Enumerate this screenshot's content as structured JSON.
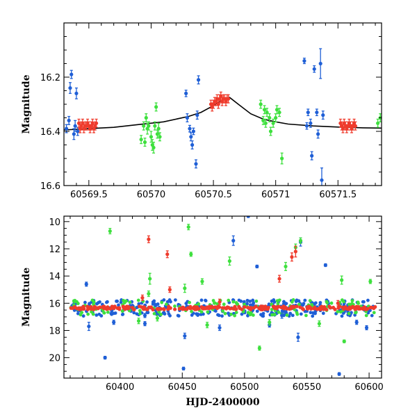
{
  "colors": {
    "blue": "#1f5fd6",
    "green": "#3ee03e",
    "red": "#ef3b2c",
    "axis": "#000000",
    "model": "#000000"
  },
  "chart_data": [
    {
      "type": "scatter",
      "xlabel": "",
      "ylabel": "Magnitude",
      "xlim": [
        60569.3,
        60571.85
      ],
      "ylim": [
        16.6,
        16.0
      ],
      "y_inverted": true,
      "x_ticks": [
        60569.5,
        60570,
        60570.5,
        60571,
        60571.5
      ],
      "x_tick_labels": [
        "60569.5",
        "60570",
        "60570.5",
        "60571",
        "60571.5"
      ],
      "y_ticks": [
        16.2,
        16.4,
        16.6
      ],
      "y_tick_labels": [
        "16.2",
        "16.4",
        "16.6"
      ],
      "model_curve": {
        "x": [
          60569.3,
          60569.5,
          60569.7,
          60569.9,
          60570.1,
          60570.3,
          60570.4,
          60570.5,
          60570.55,
          60570.6,
          60570.63,
          60570.7,
          60570.8,
          60570.9,
          60571.0,
          60571.1,
          60571.3,
          60571.5,
          60571.7,
          60571.85
        ],
        "y": [
          16.395,
          16.39,
          16.385,
          16.375,
          16.365,
          16.345,
          16.33,
          16.305,
          16.29,
          16.28,
          16.275,
          16.3,
          16.335,
          16.355,
          16.365,
          16.373,
          16.38,
          16.384,
          16.387,
          16.388
        ]
      },
      "series": [
        {
          "color": "blue",
          "points": [
            [
              60569.32,
              16.39,
              0.015
            ],
            [
              60569.34,
              16.36,
              0.015
            ],
            [
              60569.35,
              16.24,
              0.02
            ],
            [
              60569.36,
              16.19,
              0.015
            ],
            [
              60569.38,
              16.41,
              0.02
            ],
            [
              60569.39,
              16.38,
              0.02
            ],
            [
              60569.4,
              16.26,
              0.02
            ],
            [
              60569.41,
              16.4,
              0.015
            ],
            [
              60570.28,
              16.26,
              0.012
            ],
            [
              60570.29,
              16.35,
              0.015
            ],
            [
              60570.31,
              16.39,
              0.012
            ],
            [
              60570.32,
              16.42,
              0.015
            ],
            [
              60570.33,
              16.45,
              0.015
            ],
            [
              60570.34,
              16.4,
              0.012
            ],
            [
              60570.36,
              16.52,
              0.015
            ],
            [
              60570.37,
              16.34,
              0.015
            ],
            [
              60570.38,
              16.21,
              0.015
            ],
            [
              60571.23,
              16.14,
              0.01
            ],
            [
              60571.25,
              16.38,
              0.012
            ],
            [
              60571.26,
              16.33,
              0.012
            ],
            [
              60571.28,
              16.37,
              0.015
            ],
            [
              60571.29,
              16.49,
              0.015
            ],
            [
              60571.31,
              16.17,
              0.012
            ],
            [
              60571.33,
              16.33,
              0.012
            ],
            [
              60571.34,
              16.41,
              0.015
            ],
            [
              60571.36,
              16.15,
              0.055
            ],
            [
              60571.37,
              16.58,
              0.045
            ],
            [
              60571.38,
              16.34,
              0.015
            ]
          ]
        },
        {
          "color": "green",
          "points": [
            [
              60569.92,
              16.43,
              0.015
            ],
            [
              60569.94,
              16.38,
              0.015
            ],
            [
              60569.95,
              16.44,
              0.015
            ],
            [
              60569.96,
              16.35,
              0.015
            ],
            [
              60569.97,
              16.39,
              0.02
            ],
            [
              60569.98,
              16.38,
              0.015
            ],
            [
              60570.0,
              16.42,
              0.02
            ],
            [
              60570.01,
              16.45,
              0.02
            ],
            [
              60570.02,
              16.46,
              0.02
            ],
            [
              60570.03,
              16.38,
              0.015
            ],
            [
              60570.04,
              16.31,
              0.015
            ],
            [
              60570.05,
              16.41,
              0.015
            ],
            [
              60570.06,
              16.39,
              0.02
            ],
            [
              60570.07,
              16.42,
              0.015
            ],
            [
              60570.88,
              16.3,
              0.015
            ],
            [
              60570.9,
              16.36,
              0.015
            ],
            [
              60570.91,
              16.32,
              0.015
            ],
            [
              60570.92,
              16.37,
              0.015
            ],
            [
              60570.93,
              16.33,
              0.015
            ],
            [
              60570.95,
              16.35,
              0.015
            ],
            [
              60570.96,
              16.4,
              0.015
            ],
            [
              60570.98,
              16.37,
              0.015
            ],
            [
              60571.0,
              16.35,
              0.015
            ],
            [
              60571.01,
              16.32,
              0.015
            ],
            [
              60571.03,
              16.33,
              0.015
            ],
            [
              60571.05,
              16.5,
              0.02
            ],
            [
              60571.82,
              16.37,
              0.015
            ],
            [
              60571.84,
              16.35,
              0.015
            ]
          ]
        },
        {
          "color": "red",
          "points": [
            [
              60569.42,
              16.37,
              0.015
            ],
            [
              60569.43,
              16.39,
              0.015
            ],
            [
              60569.44,
              16.38,
              0.015
            ],
            [
              60569.45,
              16.37,
              0.015
            ],
            [
              60569.46,
              16.39,
              0.015
            ],
            [
              60569.47,
              16.38,
              0.015
            ],
            [
              60569.48,
              16.38,
              0.015
            ],
            [
              60569.49,
              16.37,
              0.015
            ],
            [
              60569.5,
              16.38,
              0.015
            ],
            [
              60569.51,
              16.39,
              0.015
            ],
            [
              60569.52,
              16.38,
              0.015
            ],
            [
              60569.53,
              16.37,
              0.015
            ],
            [
              60569.54,
              16.39,
              0.015
            ],
            [
              60569.55,
              16.38,
              0.015
            ],
            [
              60569.56,
              16.37,
              0.015
            ],
            [
              60570.48,
              16.3,
              0.015
            ],
            [
              60570.49,
              16.31,
              0.015
            ],
            [
              60570.5,
              16.3,
              0.015
            ],
            [
              60570.51,
              16.29,
              0.015
            ],
            [
              60570.52,
              16.29,
              0.015
            ],
            [
              60570.53,
              16.28,
              0.015
            ],
            [
              60570.54,
              16.3,
              0.015
            ],
            [
              60570.55,
              16.28,
              0.015
            ],
            [
              60570.56,
              16.27,
              0.015
            ],
            [
              60570.57,
              16.29,
              0.015
            ],
            [
              60570.58,
              16.28,
              0.015
            ],
            [
              60570.59,
              16.28,
              0.015
            ],
            [
              60570.6,
              16.29,
              0.015
            ],
            [
              60570.61,
              16.28,
              0.015
            ],
            [
              60570.62,
              16.28,
              0.015
            ],
            [
              60571.52,
              16.37,
              0.015
            ],
            [
              60571.53,
              16.38,
              0.015
            ],
            [
              60571.54,
              16.39,
              0.015
            ],
            [
              60571.55,
              16.37,
              0.015
            ],
            [
              60571.56,
              16.38,
              0.015
            ],
            [
              60571.57,
              16.39,
              0.015
            ],
            [
              60571.58,
              16.38,
              0.015
            ],
            [
              60571.59,
              16.37,
              0.015
            ],
            [
              60571.6,
              16.38,
              0.015
            ],
            [
              60571.61,
              16.39,
              0.015
            ],
            [
              60571.62,
              16.38,
              0.015
            ],
            [
              60571.63,
              16.37,
              0.015
            ],
            [
              60571.64,
              16.38,
              0.015
            ]
          ]
        }
      ]
    },
    {
      "type": "scatter",
      "xlabel": "HJD-2400000",
      "ylabel": "Magnitude",
      "xlim": [
        60355,
        60610
      ],
      "ylim": [
        21.5,
        9.6
      ],
      "y_inverted": true,
      "x_ticks": [
        60400,
        60450,
        60500,
        60550,
        60600
      ],
      "x_tick_labels": [
        "60400",
        "60450",
        "60500",
        "60550",
        "60600"
      ],
      "y_ticks": [
        10,
        12,
        14,
        16,
        18,
        20
      ],
      "y_tick_labels": [
        "10",
        "12",
        "14",
        "16",
        "18",
        "20"
      ],
      "band_range": [
        60360,
        60605
      ],
      "baseline_mag": 16.35,
      "series": [
        {
          "color": "blue",
          "outliers": [
            [
              60373,
              14.6,
              0.15
            ],
            [
              60388,
              20.0,
              0.1
            ],
            [
              60420,
              17.5,
              0.15
            ],
            [
              60451,
              20.8,
              0.1
            ],
            [
              60452,
              18.4,
              0.2
            ],
            [
              60491,
              11.4,
              0.35
            ],
            [
              60503,
              9.6,
              0.1
            ],
            [
              60510,
              13.3,
              0.1
            ],
            [
              60545,
              11.5,
              0.3
            ],
            [
              60543,
              18.5,
              0.3
            ],
            [
              60565,
              13.2,
              0.1
            ],
            [
              60576,
              21.2,
              0.1
            ],
            [
              60375,
              17.7,
              0.3
            ],
            [
              60480,
              17.8,
              0.2
            ],
            [
              60530,
              16.9,
              0.2
            ],
            [
              60598,
              17.8,
              0.15
            ],
            [
              60420,
              16.9,
              0.15
            ],
            [
              60395,
              17.4,
              0.15
            ],
            [
              60520,
              17.6,
              0.15
            ],
            [
              60590,
              17.4,
              0.15
            ]
          ]
        },
        {
          "color": "green",
          "outliers": [
            [
              60392,
              10.7,
              0.2
            ],
            [
              60424,
              14.2,
              0.4
            ],
            [
              60423,
              15.3,
              0.2
            ],
            [
              60455,
              10.4,
              0.2
            ],
            [
              60457,
              12.4,
              0.15
            ],
            [
              60452,
              14.9,
              0.3
            ],
            [
              60466,
              14.4,
              0.2
            ],
            [
              60488,
              12.9,
              0.3
            ],
            [
              60512,
              19.3,
              0.15
            ],
            [
              60533,
              13.3,
              0.3
            ],
            [
              60541,
              11.9,
              0.25
            ],
            [
              60545,
              11.4,
              0.2
            ],
            [
              60578,
              14.3,
              0.3
            ],
            [
              60580,
              18.8,
              0.1
            ],
            [
              60601,
              14.4,
              0.15
            ],
            [
              60415,
              17.3,
              0.2
            ],
            [
              60470,
              17.6,
              0.2
            ],
            [
              60520,
              17.4,
              0.2
            ],
            [
              60560,
              17.5,
              0.2
            ],
            [
              60430,
              17.1,
              0.2
            ]
          ]
        },
        {
          "color": "red",
          "outliers": [
            [
              60423,
              11.3,
              0.25
            ],
            [
              60438,
              12.4,
              0.25
            ],
            [
              60440,
              15.0,
              0.2
            ],
            [
              60528,
              14.2,
              0.25
            ],
            [
              60538,
              12.6,
              0.3
            ],
            [
              60541,
              12.2,
              0.4
            ],
            [
              60418,
              15.6,
              0.2
            ],
            [
              60480,
              15.9,
              0.2
            ],
            [
              60575,
              16.0,
              0.2
            ]
          ]
        }
      ]
    }
  ]
}
